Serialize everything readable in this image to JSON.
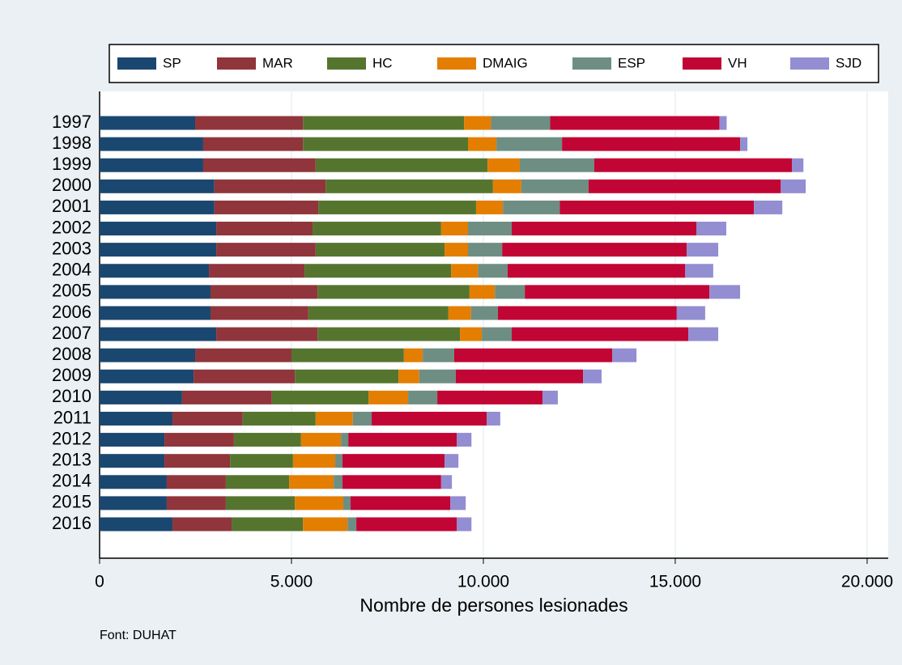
{
  "chart_data": {
    "type": "stacked_barh",
    "xlabel": "Nombre de persones lesionades",
    "source": "Font: DUHAT",
    "categories": [
      "1997",
      "1998",
      "1999",
      "2000",
      "2001",
      "2002",
      "2003",
      "2004",
      "2005",
      "2006",
      "2007",
      "2008",
      "2009",
      "2010",
      "2011",
      "2012",
      "2013",
      "2014",
      "2015",
      "2016"
    ],
    "series": [
      {
        "name": "SP",
        "color": "#1a476f",
        "values": [
          2490,
          2700,
          2700,
          2990,
          2990,
          3040,
          3040,
          2850,
          2890,
          2890,
          3040,
          2490,
          2450,
          2150,
          1900,
          1690,
          1690,
          1750,
          1750,
          1900
        ]
      },
      {
        "name": "MAR",
        "color": "#90353b",
        "values": [
          2810,
          2600,
          2930,
          2900,
          2710,
          2510,
          2590,
          2490,
          2790,
          2550,
          2640,
          2510,
          2640,
          2340,
          1830,
          1810,
          1710,
          1540,
          1540,
          1540
        ]
      },
      {
        "name": "HC",
        "color": "#55752f",
        "values": [
          4200,
          4300,
          4480,
          4360,
          4110,
          3350,
          3360,
          3820,
          3960,
          3650,
          3710,
          2930,
          2700,
          2520,
          1900,
          1750,
          1640,
          1650,
          1800,
          1860
        ]
      },
      {
        "name": "DMAIG",
        "color": "#e37e00",
        "values": [
          700,
          740,
          840,
          740,
          700,
          700,
          610,
          700,
          660,
          590,
          570,
          490,
          540,
          1030,
          970,
          1040,
          1100,
          1160,
          1260,
          1160
        ]
      },
      {
        "name": "ESP",
        "color": "#6e8e84",
        "values": [
          1540,
          1710,
          1940,
          1750,
          1480,
          1140,
          890,
          770,
          780,
          700,
          780,
          820,
          950,
          760,
          490,
          190,
          190,
          230,
          190,
          230
        ]
      },
      {
        "name": "VH",
        "color": "#c10534",
        "values": [
          4410,
          4640,
          5150,
          5010,
          5060,
          4810,
          4810,
          4630,
          4810,
          4660,
          4600,
          4120,
          3320,
          2740,
          3000,
          2830,
          2660,
          2570,
          2600,
          2620
        ]
      },
      {
        "name": "SJD",
        "color": "#938dd2",
        "values": [
          190,
          190,
          300,
          650,
          740,
          780,
          820,
          730,
          800,
          740,
          780,
          630,
          480,
          400,
          350,
          380,
          360,
          280,
          400,
          380
        ]
      }
    ],
    "xlim": [
      0,
      20550
    ],
    "xticks": [
      0,
      {
        "value": 5000,
        "label": "5.000"
      },
      {
        "value": 10000,
        "label": "10.000"
      },
      {
        "value": 15000,
        "label": "15.000"
      },
      {
        "value": 20000,
        "label": "20.000"
      }
    ],
    "grid": true,
    "legend": "top"
  }
}
